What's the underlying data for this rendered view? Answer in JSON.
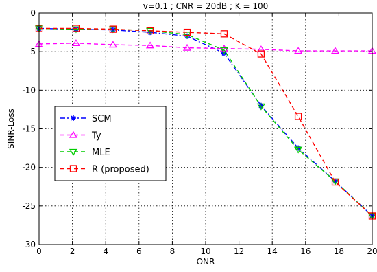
{
  "chart_data": {
    "type": "line",
    "title": "v=0.1 ; CNR = 20dB ; K = 100",
    "xlabel": "ONR",
    "ylabel": "SINR-Loss",
    "xlim": [
      0,
      20
    ],
    "ylim": [
      -30,
      0
    ],
    "xticks": [
      0,
      2,
      4,
      6,
      8,
      10,
      12,
      14,
      16,
      18,
      20
    ],
    "yticks": [
      0,
      -5,
      -10,
      -15,
      -20,
      -25,
      -30
    ],
    "grid": true,
    "legend_position": "middle-left",
    "x": [
      0,
      2.22,
      4.44,
      6.67,
      8.89,
      11.11,
      13.33,
      15.56,
      17.78,
      20
    ],
    "series": [
      {
        "name": "SCM",
        "color": "#0000ff",
        "marker": "star",
        "line": "dashdot",
        "values": [
          -2.0,
          -2.1,
          -2.2,
          -2.5,
          -3.0,
          -5.2,
          -12.0,
          -17.5,
          -21.8,
          -26.3
        ]
      },
      {
        "name": "Ty",
        "color": "#ff00ff",
        "marker": "triangle-up",
        "line": "dashed",
        "values": [
          -4.0,
          -3.9,
          -4.1,
          -4.2,
          -4.5,
          -4.6,
          -4.7,
          -4.9,
          -4.9,
          -4.9
        ]
      },
      {
        "name": "MLE",
        "color": "#00cc00",
        "marker": "triangle-down",
        "line": "dashed",
        "values": [
          -2.0,
          -2.1,
          -2.1,
          -2.3,
          -2.8,
          -4.8,
          -12.1,
          -17.7,
          -21.8,
          -26.3
        ]
      },
      {
        "name": "R (proposed)",
        "color": "#ff0000",
        "marker": "square",
        "line": "dashed",
        "values": [
          -2.0,
          -2.0,
          -2.1,
          -2.3,
          -2.5,
          -2.7,
          -5.3,
          -13.4,
          -21.9,
          -26.3
        ]
      }
    ]
  }
}
